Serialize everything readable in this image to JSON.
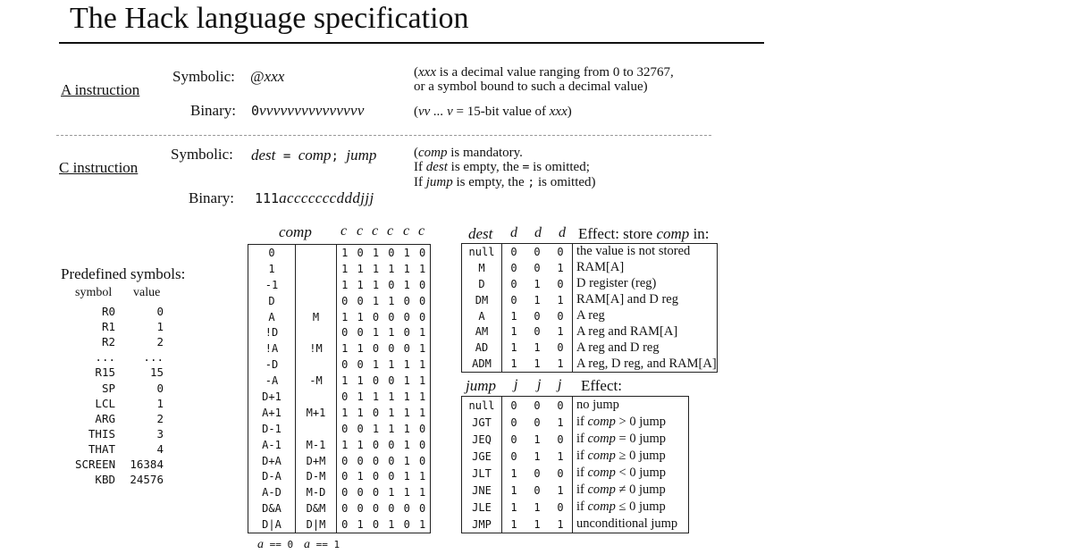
{
  "title": "The Hack language specification",
  "a_instruction": {
    "label": "A instruction",
    "symbolic_label": "Symbolic:",
    "symbolic_at": "@",
    "symbolic_value": "xxx",
    "binary_label": "Binary:",
    "binary_zero": "0",
    "binary_value": "vvvvvvvvvvvvvvv",
    "note_line1_var": "xxx",
    "note_line1_rest": " is a decimal value ranging from 0 to 32767,",
    "note_line2": "or a symbol bound to such a decimal value)",
    "note_binary_vars": "vv ... v",
    "note_binary_eq": " = 15-bit value of ",
    "note_binary_xxx": "xxx",
    "open_paren": "(",
    "close_paren": ")"
  },
  "c_instruction": {
    "label": "C instruction",
    "symbolic_label": "Symbolic:",
    "sym_dest": "dest",
    "sym_eq": " = ",
    "sym_comp": "comp",
    "sym_semi": "; ",
    "sym_jump": "jump",
    "binary_label": "Binary:",
    "binary_fixed": "111",
    "binary_rest": "acccccccdddjjj",
    "note1_var": "comp",
    "note1_rest": " is mandatory.",
    "note2_a": "If ",
    "note2_var": "dest",
    "note2_b": " is empty, the ",
    "note2_sym": "=",
    "note2_c": " is omitted;",
    "note3_a": "If ",
    "note3_var": "jump",
    "note3_b": " is empty, the ",
    "note3_sym": ";",
    "note3_c": " is omitted)"
  },
  "predefined": {
    "title": "Predefined symbols:",
    "col_symbol": "symbol",
    "col_value": "value",
    "rows": [
      {
        "s": "R0",
        "v": "0"
      },
      {
        "s": "R1",
        "v": "1"
      },
      {
        "s": "R2",
        "v": "2"
      },
      {
        "s": "...",
        "v": "..."
      },
      {
        "s": "R15",
        "v": "15"
      },
      {
        "s": "SP",
        "v": "0"
      },
      {
        "s": "LCL",
        "v": "1"
      },
      {
        "s": "ARG",
        "v": "2"
      },
      {
        "s": "THIS",
        "v": "3"
      },
      {
        "s": "THAT",
        "v": "4"
      },
      {
        "s": "SCREEN",
        "v": "16384"
      },
      {
        "s": "KBD",
        "v": "24576"
      }
    ]
  },
  "comp_table": {
    "header_comp": "comp",
    "header_bits": [
      "c",
      "c",
      "c",
      "c",
      "c",
      "c"
    ],
    "footer_a0": "a",
    "footer_a0_eq": " == 0",
    "footer_a1": "a",
    "footer_a1_eq": " == 1",
    "rows": [
      {
        "a0": "0",
        "a1": "",
        "bits": [
          "1",
          "0",
          "1",
          "0",
          "1",
          "0"
        ]
      },
      {
        "a0": "1",
        "a1": "",
        "bits": [
          "1",
          "1",
          "1",
          "1",
          "1",
          "1"
        ]
      },
      {
        "a0": "-1",
        "a1": "",
        "bits": [
          "1",
          "1",
          "1",
          "0",
          "1",
          "0"
        ]
      },
      {
        "a0": "D",
        "a1": "",
        "bits": [
          "0",
          "0",
          "1",
          "1",
          "0",
          "0"
        ]
      },
      {
        "a0": "A",
        "a1": "M",
        "bits": [
          "1",
          "1",
          "0",
          "0",
          "0",
          "0"
        ]
      },
      {
        "a0": "!D",
        "a1": "",
        "bits": [
          "0",
          "0",
          "1",
          "1",
          "0",
          "1"
        ]
      },
      {
        "a0": "!A",
        "a1": "!M",
        "bits": [
          "1",
          "1",
          "0",
          "0",
          "0",
          "1"
        ]
      },
      {
        "a0": "-D",
        "a1": "",
        "bits": [
          "0",
          "0",
          "1",
          "1",
          "1",
          "1"
        ]
      },
      {
        "a0": "-A",
        "a1": "-M",
        "bits": [
          "1",
          "1",
          "0",
          "0",
          "1",
          "1"
        ]
      },
      {
        "a0": "D+1",
        "a1": "",
        "bits": [
          "0",
          "1",
          "1",
          "1",
          "1",
          "1"
        ]
      },
      {
        "a0": "A+1",
        "a1": "M+1",
        "bits": [
          "1",
          "1",
          "0",
          "1",
          "1",
          "1"
        ]
      },
      {
        "a0": "D-1",
        "a1": "",
        "bits": [
          "0",
          "0",
          "1",
          "1",
          "1",
          "0"
        ]
      },
      {
        "a0": "A-1",
        "a1": "M-1",
        "bits": [
          "1",
          "1",
          "0",
          "0",
          "1",
          "0"
        ]
      },
      {
        "a0": "D+A",
        "a1": "D+M",
        "bits": [
          "0",
          "0",
          "0",
          "0",
          "1",
          "0"
        ]
      },
      {
        "a0": "D-A",
        "a1": "D-M",
        "bits": [
          "0",
          "1",
          "0",
          "0",
          "1",
          "1"
        ]
      },
      {
        "a0": "A-D",
        "a1": "M-D",
        "bits": [
          "0",
          "0",
          "0",
          "1",
          "1",
          "1"
        ]
      },
      {
        "a0": "D&A",
        "a1": "D&M",
        "bits": [
          "0",
          "0",
          "0",
          "0",
          "0",
          "0"
        ]
      },
      {
        "a0": "D|A",
        "a1": "D|M",
        "bits": [
          "0",
          "1",
          "0",
          "1",
          "0",
          "1"
        ]
      }
    ]
  },
  "dest_table": {
    "header_dest": "dest",
    "header_bits": [
      "d",
      "d",
      "d"
    ],
    "header_effect_a": "Effect: store ",
    "header_effect_var": "comp",
    "header_effect_b": " in:",
    "rows": [
      {
        "m": "null",
        "bits": [
          "0",
          "0",
          "0"
        ],
        "effect": "the value is not stored"
      },
      {
        "m": "M",
        "bits": [
          "0",
          "0",
          "1"
        ],
        "effect": "RAM[A]"
      },
      {
        "m": "D",
        "bits": [
          "0",
          "1",
          "0"
        ],
        "effect": "D register (reg)"
      },
      {
        "m": "DM",
        "bits": [
          "0",
          "1",
          "1"
        ],
        "effect": "RAM[A] and D reg"
      },
      {
        "m": "A",
        "bits": [
          "1",
          "0",
          "0"
        ],
        "effect": "A reg"
      },
      {
        "m": "AM",
        "bits": [
          "1",
          "0",
          "1"
        ],
        "effect": "A reg and RAM[A]"
      },
      {
        "m": "AD",
        "bits": [
          "1",
          "1",
          "0"
        ],
        "effect": "A reg and D reg"
      },
      {
        "m": "ADM",
        "bits": [
          "1",
          "1",
          "1"
        ],
        "effect": "A reg, D reg, and RAM[A]"
      }
    ]
  },
  "jump_table": {
    "header_jump": "jump",
    "header_bits": [
      "j",
      "j",
      "j"
    ],
    "header_effect": "Effect:",
    "rows": [
      {
        "m": "null",
        "bits": [
          "0",
          "0",
          "0"
        ],
        "pre": "no jump",
        "var": "",
        "post": ""
      },
      {
        "m": "JGT",
        "bits": [
          "0",
          "0",
          "1"
        ],
        "pre": "if ",
        "var": "comp",
        "post": " > 0 jump"
      },
      {
        "m": "JEQ",
        "bits": [
          "0",
          "1",
          "0"
        ],
        "pre": "if ",
        "var": "comp",
        "post": " = 0 jump"
      },
      {
        "m": "JGE",
        "bits": [
          "0",
          "1",
          "1"
        ],
        "pre": "if ",
        "var": "comp",
        "post": " ≥ 0 jump"
      },
      {
        "m": "JLT",
        "bits": [
          "1",
          "0",
          "0"
        ],
        "pre": "if ",
        "var": "comp",
        "post": " < 0 jump"
      },
      {
        "m": "JNE",
        "bits": [
          "1",
          "0",
          "1"
        ],
        "pre": "if ",
        "var": "comp",
        "post": " ≠ 0 jump"
      },
      {
        "m": "JLE",
        "bits": [
          "1",
          "1",
          "0"
        ],
        "pre": "if ",
        "var": "comp",
        "post": " ≤ 0 jump"
      },
      {
        "m": "JMP",
        "bits": [
          "1",
          "1",
          "1"
        ],
        "pre": "unconditional jump",
        "var": "",
        "post": ""
      }
    ]
  }
}
